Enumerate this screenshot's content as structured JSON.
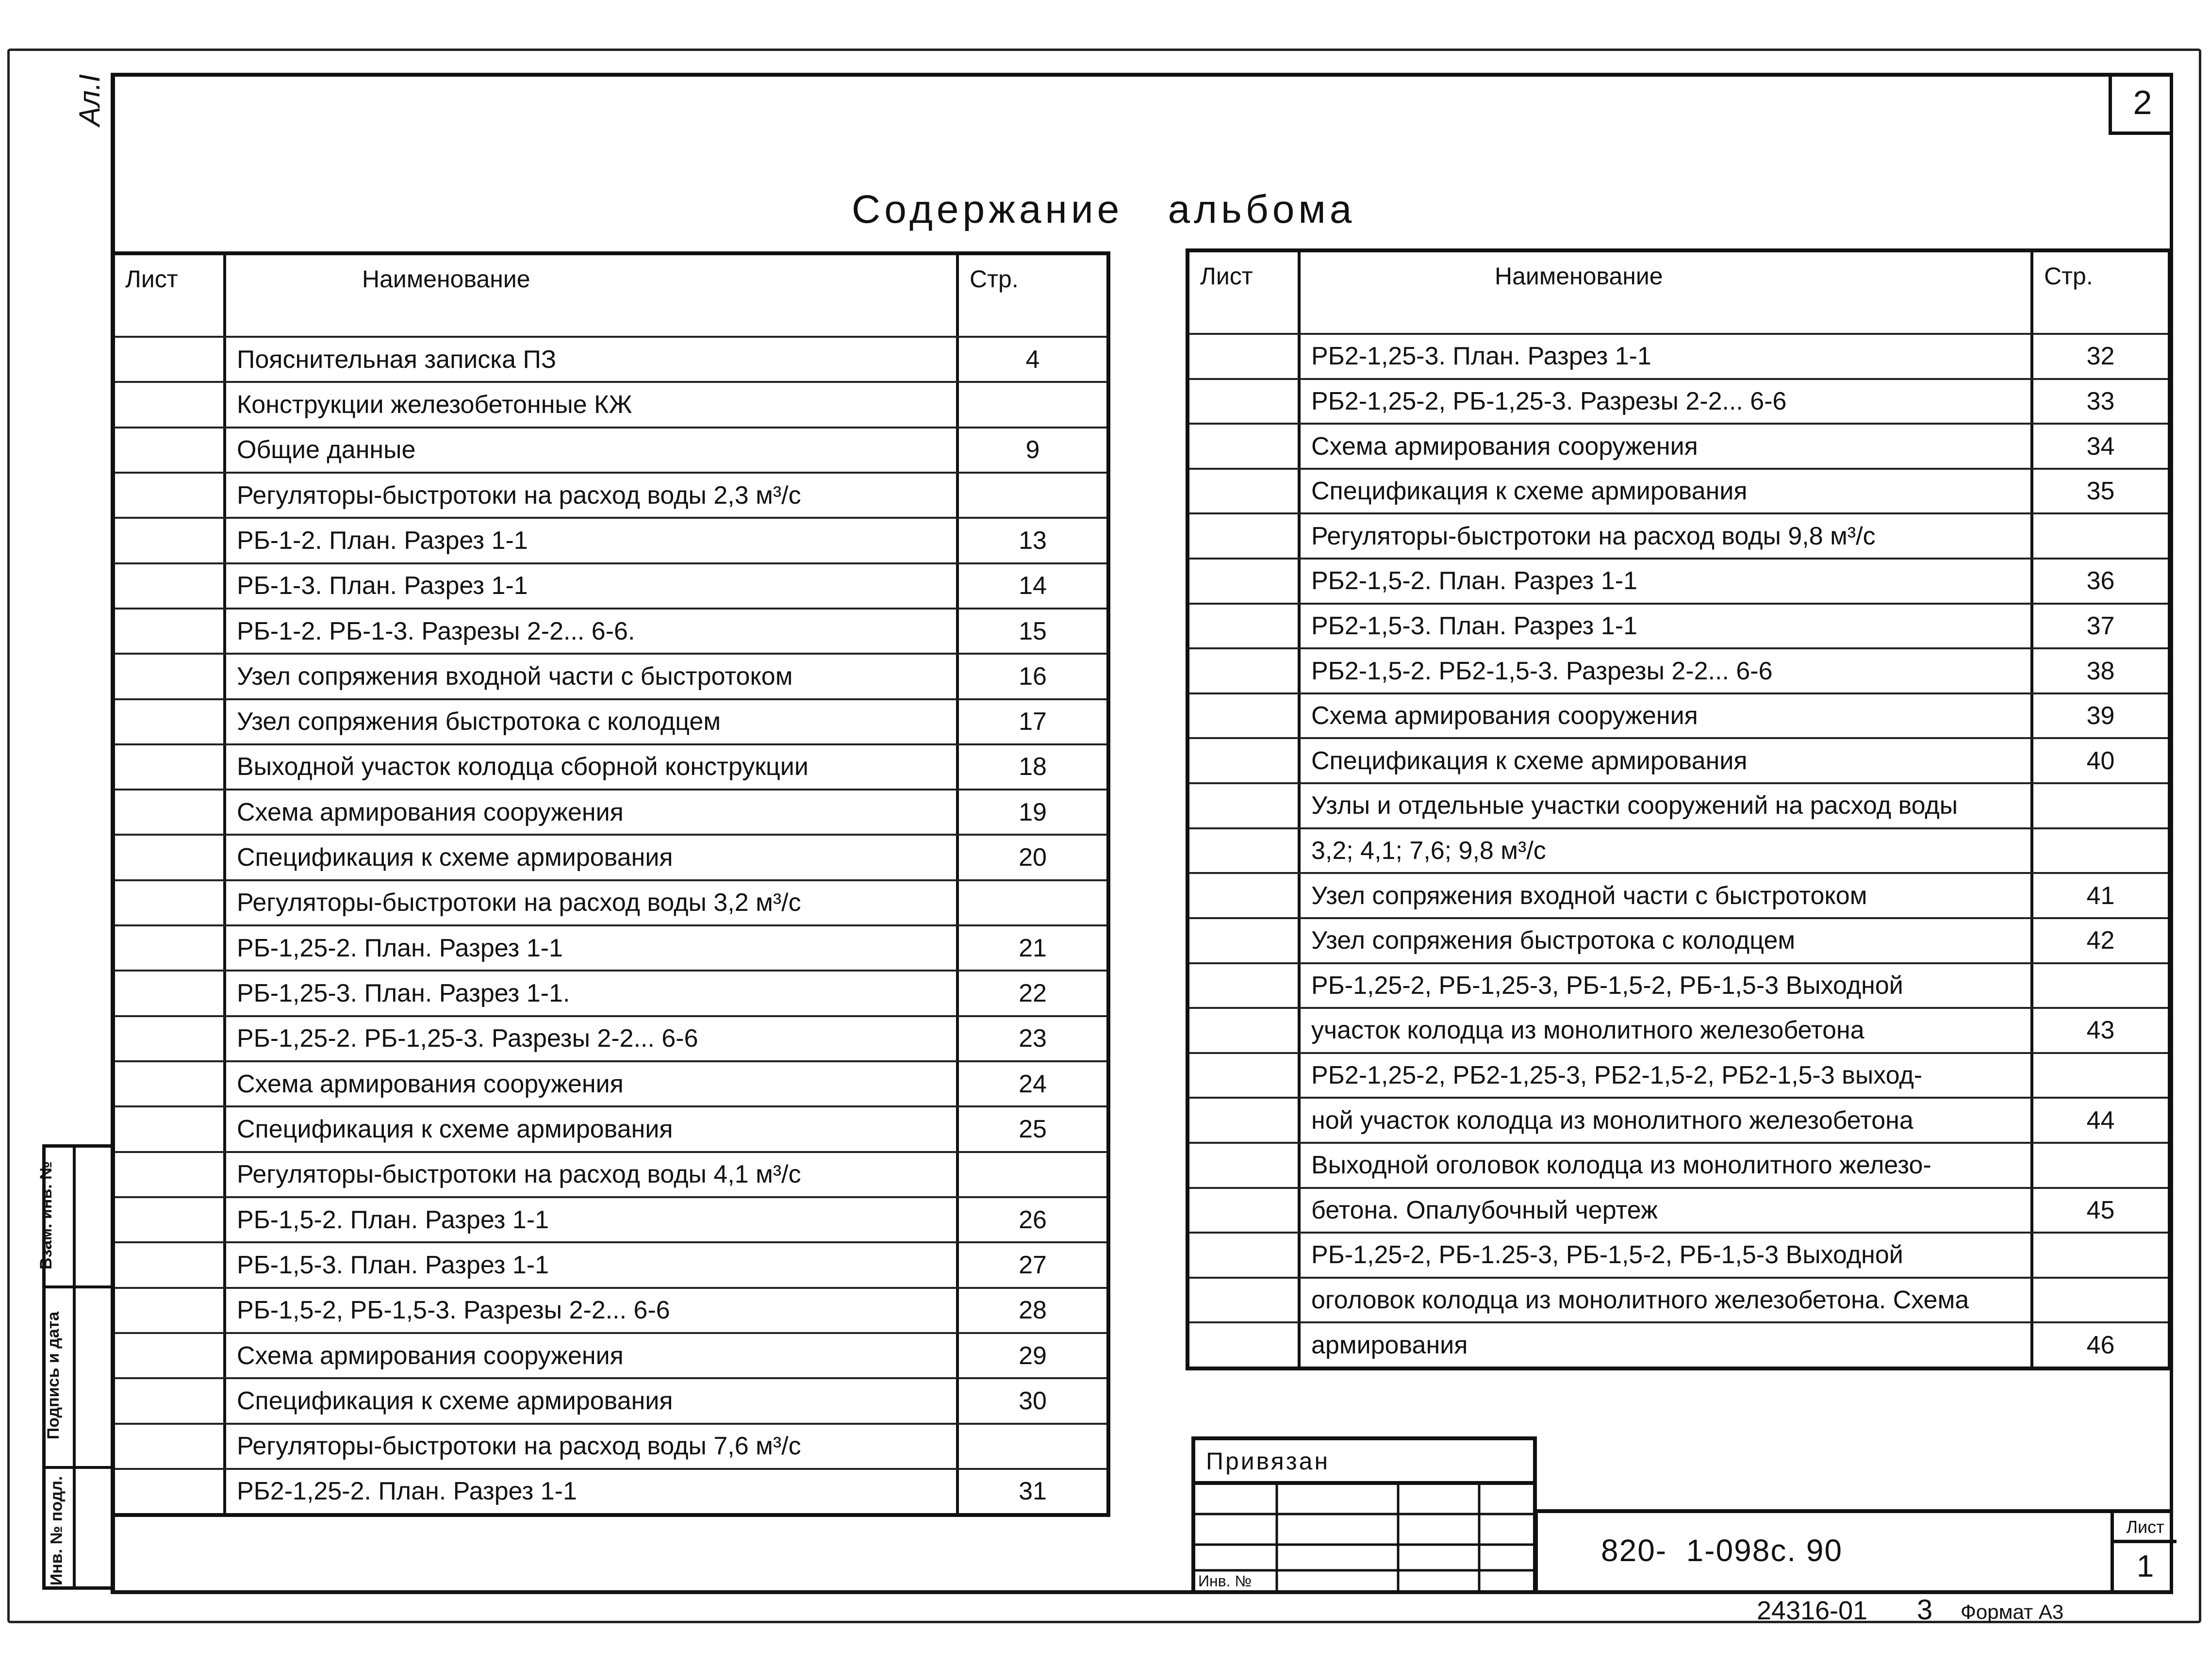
{
  "sheet": {
    "corner_number": "2",
    "side_label": "Ал.I",
    "title": "Содержание   альбома"
  },
  "headers": {
    "sheet": "Лист",
    "name": "Наименование",
    "page": "Стр."
  },
  "left_rows": [
    {
      "name": "Пояснительная записка ПЗ",
      "page": "4"
    },
    {
      "name": "Конструкции железобетонные  КЖ",
      "page": ""
    },
    {
      "name": "Общие  данные",
      "page": "9"
    },
    {
      "name": "Регуляторы-быстротоки на расход воды 2,3 м³/с",
      "page": ""
    },
    {
      "name": "РБ-1-2. План. Разрез 1-1",
      "page": "13"
    },
    {
      "name": "РБ-1-3. План. Разрез 1-1",
      "page": "14"
    },
    {
      "name": "РБ-1-2. РБ-1-3. Разрезы 2-2... 6-6.",
      "page": "15"
    },
    {
      "name": "Узел сопряжения входной части с быстротоком",
      "page": "16"
    },
    {
      "name": "Узел сопряжения быстротока с колодцем",
      "page": "17"
    },
    {
      "name": "Выходной участок колодца сборной конструкции",
      "page": "18"
    },
    {
      "name": "Схема армирования сооружения",
      "page": "19"
    },
    {
      "name": "Спецификация к схеме армирования",
      "page": "20"
    },
    {
      "name": "Регуляторы-быстротоки на расход воды 3,2 м³/с",
      "page": ""
    },
    {
      "name": "РБ-1,25-2. План. Разрез 1-1",
      "page": "21"
    },
    {
      "name": "РБ-1,25-3. План. Разрез 1-1.",
      "page": "22"
    },
    {
      "name": "РБ-1,25-2. РБ-1,25-3. Разрезы 2-2... 6-6",
      "page": "23"
    },
    {
      "name": "Схема армирования сооружения",
      "page": "24"
    },
    {
      "name": "Спецификация к схеме армирования",
      "page": "25"
    },
    {
      "name": "Регуляторы-быстротоки на расход воды 4,1 м³/с",
      "page": ""
    },
    {
      "name": "РБ-1,5-2. План. Разрез 1-1",
      "page": "26"
    },
    {
      "name": "РБ-1,5-3. План. Разрез 1-1",
      "page": "27"
    },
    {
      "name": "РБ-1,5-2, РБ-1,5-3. Разрезы 2-2... 6-6",
      "page": "28"
    },
    {
      "name": "Схема армирования сооружения",
      "page": "29"
    },
    {
      "name": "Спецификация к схеме армирования",
      "page": "30"
    },
    {
      "name": "Регуляторы-быстротоки на расход воды 7,6 м³/с",
      "page": ""
    },
    {
      "name": "РБ2-1,25-2. План. Разрез 1-1",
      "page": "31"
    }
  ],
  "right_rows": [
    {
      "name": "РБ2-1,25-3. План. Разрез 1-1",
      "page": "32"
    },
    {
      "name": "РБ2-1,25-2, РБ-1,25-3. Разрезы 2-2... 6-6",
      "page": "33"
    },
    {
      "name": "Схема армирования сооружения",
      "page": "34"
    },
    {
      "name": "Спецификация к схеме армирования",
      "page": "35"
    },
    {
      "name": "Регуляторы-быстротоки на расход воды 9,8 м³/с",
      "page": ""
    },
    {
      "name": "РБ2-1,5-2. План. Разрез 1-1",
      "page": "36"
    },
    {
      "name": "РБ2-1,5-3. План. Разрез 1-1",
      "page": "37"
    },
    {
      "name": "РБ2-1,5-2. РБ2-1,5-3. Разрезы 2-2... 6-6",
      "page": "38"
    },
    {
      "name": "Схема армирования сооружения",
      "page": "39"
    },
    {
      "name": "Спецификация к схеме армирования",
      "page": "40"
    },
    {
      "name": "Узлы и отдельные участки сооружений на расход воды",
      "page": ""
    },
    {
      "name": "3,2; 4,1; 7,6; 9,8 м³/с",
      "page": ""
    },
    {
      "name": "Узел сопряжения входной части с быстротоком",
      "page": "41"
    },
    {
      "name": "Узел сопряжения быстротока с колодцем",
      "page": "42"
    },
    {
      "name": "РБ-1,25-2, РБ-1,25-3, РБ-1,5-2, РБ-1,5-3 Выходной",
      "page": ""
    },
    {
      "name": "участок колодца из монолитного железобетона",
      "page": "43"
    },
    {
      "name": "РБ2-1,25-2, РБ2-1,25-3, РБ2-1,5-2, РБ2-1,5-3 выход-",
      "page": ""
    },
    {
      "name": "ной участок колодца из монолитного железобетона",
      "page": "44"
    },
    {
      "name": "Выходной оголовок колодца из монолитного железо-",
      "page": ""
    },
    {
      "name": "бетона. Опалубочный  чертеж",
      "page": "45"
    },
    {
      "name": "РБ-1,25-2, РБ-1.25-3, РБ-1,5-2, РБ-1,5-3 Выходной",
      "page": ""
    },
    {
      "name": "оголовок колодца из монолитного железобетона. Схема",
      "page": ""
    },
    {
      "name": "армирования",
      "page": "46"
    }
  ],
  "stamp": {
    "replace_inv": "Взам. инв. №",
    "signature_date": "Подпись и дата",
    "inv_original": "Инв. № подл."
  },
  "binding": {
    "title": "Привязан",
    "inv_label": "Инв. №"
  },
  "title_block": {
    "code": "820-  1-098с. 90",
    "sheet_label": "Лист",
    "sheet_value": "1"
  },
  "footer": {
    "order": "24316-01",
    "copy": "3",
    "format": "Формат А3"
  }
}
